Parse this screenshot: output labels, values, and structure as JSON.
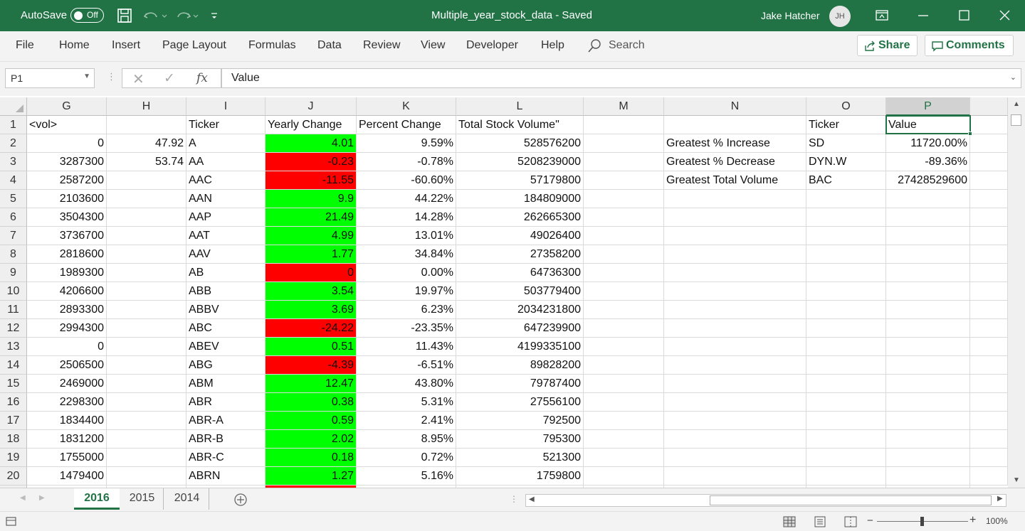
{
  "titlebar": {
    "autosave_label": "AutoSave",
    "autosave_state": "Off",
    "doc_title": "Multiple_year_stock_data  -  Saved",
    "user_name": "Jake Hatcher",
    "user_initials": "JH",
    "accent": "#217346"
  },
  "ribbon": {
    "tabs": [
      "File",
      "Home",
      "Insert",
      "Page Layout",
      "Formulas",
      "Data",
      "Review",
      "View",
      "Developer",
      "Help"
    ],
    "search_label": "Search",
    "share_label": "Share",
    "comments_label": "Comments"
  },
  "formula_bar": {
    "name_box": "P1",
    "fx_label": "fx",
    "content": "Value"
  },
  "grid": {
    "columns": [
      "G",
      "H",
      "I",
      "J",
      "K",
      "L",
      "M",
      "N",
      "O",
      "P"
    ],
    "selected_column": "P",
    "rows": [
      {
        "n": "1",
        "G": "<vol>",
        "H": "",
        "I": "Ticker",
        "J": "Yearly Change",
        "K": "Percent Change",
        "L": "Total Stock Volume\"",
        "N": "",
        "O": "Ticker",
        "P": "Value"
      },
      {
        "n": "2",
        "G": "0",
        "H": "47.92",
        "I": "A",
        "J": "4.01",
        "Jc": "green",
        "K": "9.59%",
        "L": "528576200",
        "N": "Greatest % Increase",
        "O": "SD",
        "P": "11720.00%"
      },
      {
        "n": "3",
        "G": "3287300",
        "H": "53.74",
        "I": "AA",
        "J": "-0.23",
        "Jc": "red",
        "K": "-0.78%",
        "L": "5208239000",
        "N": "Greatest % Decrease",
        "O": "DYN.W",
        "P": "-89.36%"
      },
      {
        "n": "4",
        "G": "2587200",
        "H": "",
        "I": "AAC",
        "J": "-11.55",
        "Jc": "red",
        "K": "-60.60%",
        "L": "57179800",
        "N": "Greatest Total Volume",
        "O": "BAC",
        "P": "27428529600"
      },
      {
        "n": "5",
        "G": "2103600",
        "H": "",
        "I": "AAN",
        "J": "9.9",
        "Jc": "green",
        "K": "44.22%",
        "L": "184809000"
      },
      {
        "n": "6",
        "G": "3504300",
        "H": "",
        "I": "AAP",
        "J": "21.49",
        "Jc": "green",
        "K": "14.28%",
        "L": "262665300"
      },
      {
        "n": "7",
        "G": "3736700",
        "H": "",
        "I": "AAT",
        "J": "4.99",
        "Jc": "green",
        "K": "13.01%",
        "L": "49026400"
      },
      {
        "n": "8",
        "G": "2818600",
        "H": "",
        "I": "AAV",
        "J": "1.77",
        "Jc": "green",
        "K": "34.84%",
        "L": "27358200"
      },
      {
        "n": "9",
        "G": "1989300",
        "H": "",
        "I": "AB",
        "J": "0",
        "Jc": "red",
        "K": "0.00%",
        "L": "64736300"
      },
      {
        "n": "10",
        "G": "4206600",
        "H": "",
        "I": "ABB",
        "J": "3.54",
        "Jc": "green",
        "K": "19.97%",
        "L": "503779400"
      },
      {
        "n": "11",
        "G": "2893300",
        "H": "",
        "I": "ABBV",
        "J": "3.69",
        "Jc": "green",
        "K": "6.23%",
        "L": "2034231800"
      },
      {
        "n": "12",
        "G": "2994300",
        "H": "",
        "I": "ABC",
        "J": "-24.22",
        "Jc": "red",
        "K": "-23.35%",
        "L": "647239900"
      },
      {
        "n": "13",
        "G": "0",
        "H": "",
        "I": "ABEV",
        "J": "0.51",
        "Jc": "green",
        "K": "11.43%",
        "L": "4199335100"
      },
      {
        "n": "14",
        "G": "2506500",
        "H": "",
        "I": "ABG",
        "J": "-4.39",
        "Jc": "red",
        "K": "-6.51%",
        "L": "89828200"
      },
      {
        "n": "15",
        "G": "2469000",
        "H": "",
        "I": "ABM",
        "J": "12.47",
        "Jc": "green",
        "K": "43.80%",
        "L": "79787400"
      },
      {
        "n": "16",
        "G": "2298300",
        "H": "",
        "I": "ABR",
        "J": "0.38",
        "Jc": "green",
        "K": "5.31%",
        "L": "27556100"
      },
      {
        "n": "17",
        "G": "1834400",
        "H": "",
        "I": "ABR-A",
        "J": "0.59",
        "Jc": "green",
        "K": "2.41%",
        "L": "792500"
      },
      {
        "n": "18",
        "G": "1831200",
        "H": "",
        "I": "ABR-B",
        "J": "2.02",
        "Jc": "green",
        "K": "8.95%",
        "L": "795300"
      },
      {
        "n": "19",
        "G": "1755000",
        "H": "",
        "I": "ABR-C",
        "J": "0.18",
        "Jc": "green",
        "K": "0.72%",
        "L": "521300"
      },
      {
        "n": "20",
        "G": "1479400",
        "H": "",
        "I": "ABRN",
        "J": "1.27",
        "Jc": "green",
        "K": "5.16%",
        "L": "1759800"
      }
    ],
    "positive_color": "#00ff00",
    "negative_color": "#ff0000"
  },
  "sheets": {
    "tabs": [
      "2016",
      "2015",
      "2014"
    ],
    "active": "2016"
  },
  "status": {
    "zoom": "100%"
  }
}
